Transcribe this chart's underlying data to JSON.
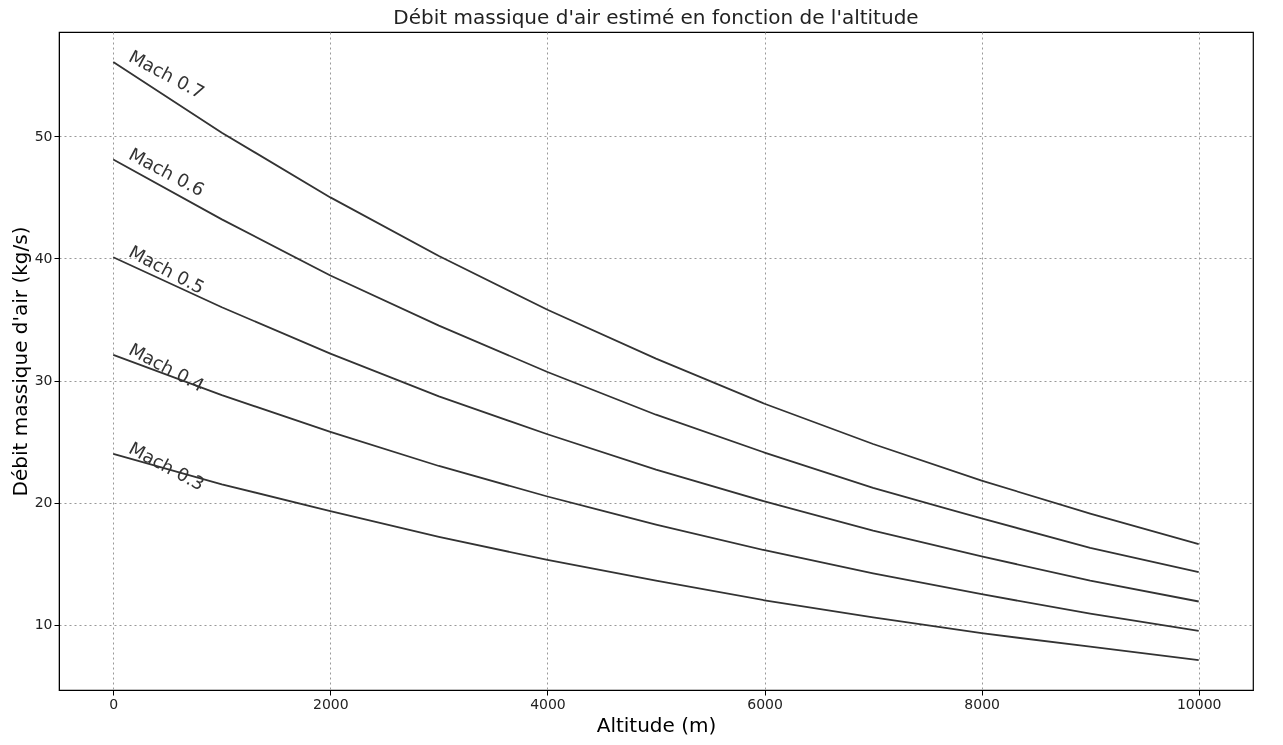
{
  "chart_data": {
    "type": "line",
    "title": "Débit massique d'air estimé en fonction de l'altitude",
    "xlabel": "Altitude (m)",
    "ylabel": "Débit massique d'air (kg/s)",
    "x": [
      0,
      1000,
      2000,
      3000,
      4000,
      5000,
      6000,
      7000,
      8000,
      9000,
      10000
    ],
    "series": [
      {
        "name": "Mach 0.7",
        "color": "#333333",
        "values": [
          56.1,
          50.3,
          45.0,
          40.2,
          35.8,
          31.8,
          28.1,
          24.8,
          21.8,
          19.1,
          16.6
        ]
      },
      {
        "name": "Mach 0.6",
        "color": "#333333",
        "values": [
          48.1,
          43.2,
          38.6,
          34.5,
          30.7,
          27.2,
          24.1,
          21.2,
          18.7,
          16.3,
          14.3
        ]
      },
      {
        "name": "Mach 0.5",
        "color": "#333333",
        "values": [
          40.1,
          36.0,
          32.2,
          28.7,
          25.6,
          22.7,
          20.1,
          17.7,
          15.6,
          13.6,
          11.9
        ]
      },
      {
        "name": "Mach 0.4",
        "color": "#333333",
        "values": [
          32.1,
          28.8,
          25.8,
          23.0,
          20.5,
          18.2,
          16.1,
          14.2,
          12.5,
          10.9,
          9.5
        ]
      },
      {
        "name": "Mach 0.3",
        "color": "#333333",
        "values": [
          24.0,
          21.5,
          19.3,
          17.2,
          15.3,
          13.6,
          12.0,
          10.6,
          9.3,
          8.2,
          7.1
        ]
      }
    ],
    "xlim": [
      -500,
      10500
    ],
    "ylim": [
      4.65,
      58.55
    ],
    "xticks": [
      0,
      2000,
      4000,
      6000,
      8000,
      10000
    ],
    "yticks": [
      10,
      20,
      30,
      40,
      50
    ],
    "grid": true,
    "legend": false
  }
}
